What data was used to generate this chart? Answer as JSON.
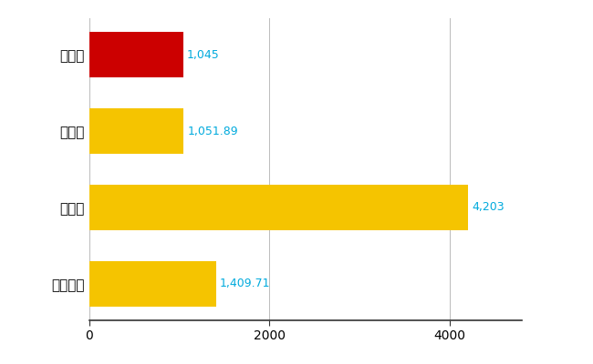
{
  "categories": [
    "坂東市",
    "県平均",
    "県最大",
    "全国平均"
  ],
  "values": [
    1045,
    1051.89,
    4203,
    1409.71
  ],
  "bar_colors": [
    "#cc0000",
    "#f5c400",
    "#f5c400",
    "#f5c400"
  ],
  "value_labels": [
    "1,045",
    "1,051.89",
    "4,203",
    "1,409.71"
  ],
  "label_color": "#00aadd",
  "xlim": [
    0,
    4800
  ],
  "xticks": [
    0,
    2000,
    4000
  ],
  "background_color": "#ffffff",
  "grid_color": "#bbbbbb",
  "bar_height": 0.6,
  "label_fontsize": 9,
  "tick_fontsize": 10,
  "ytick_fontsize": 11
}
